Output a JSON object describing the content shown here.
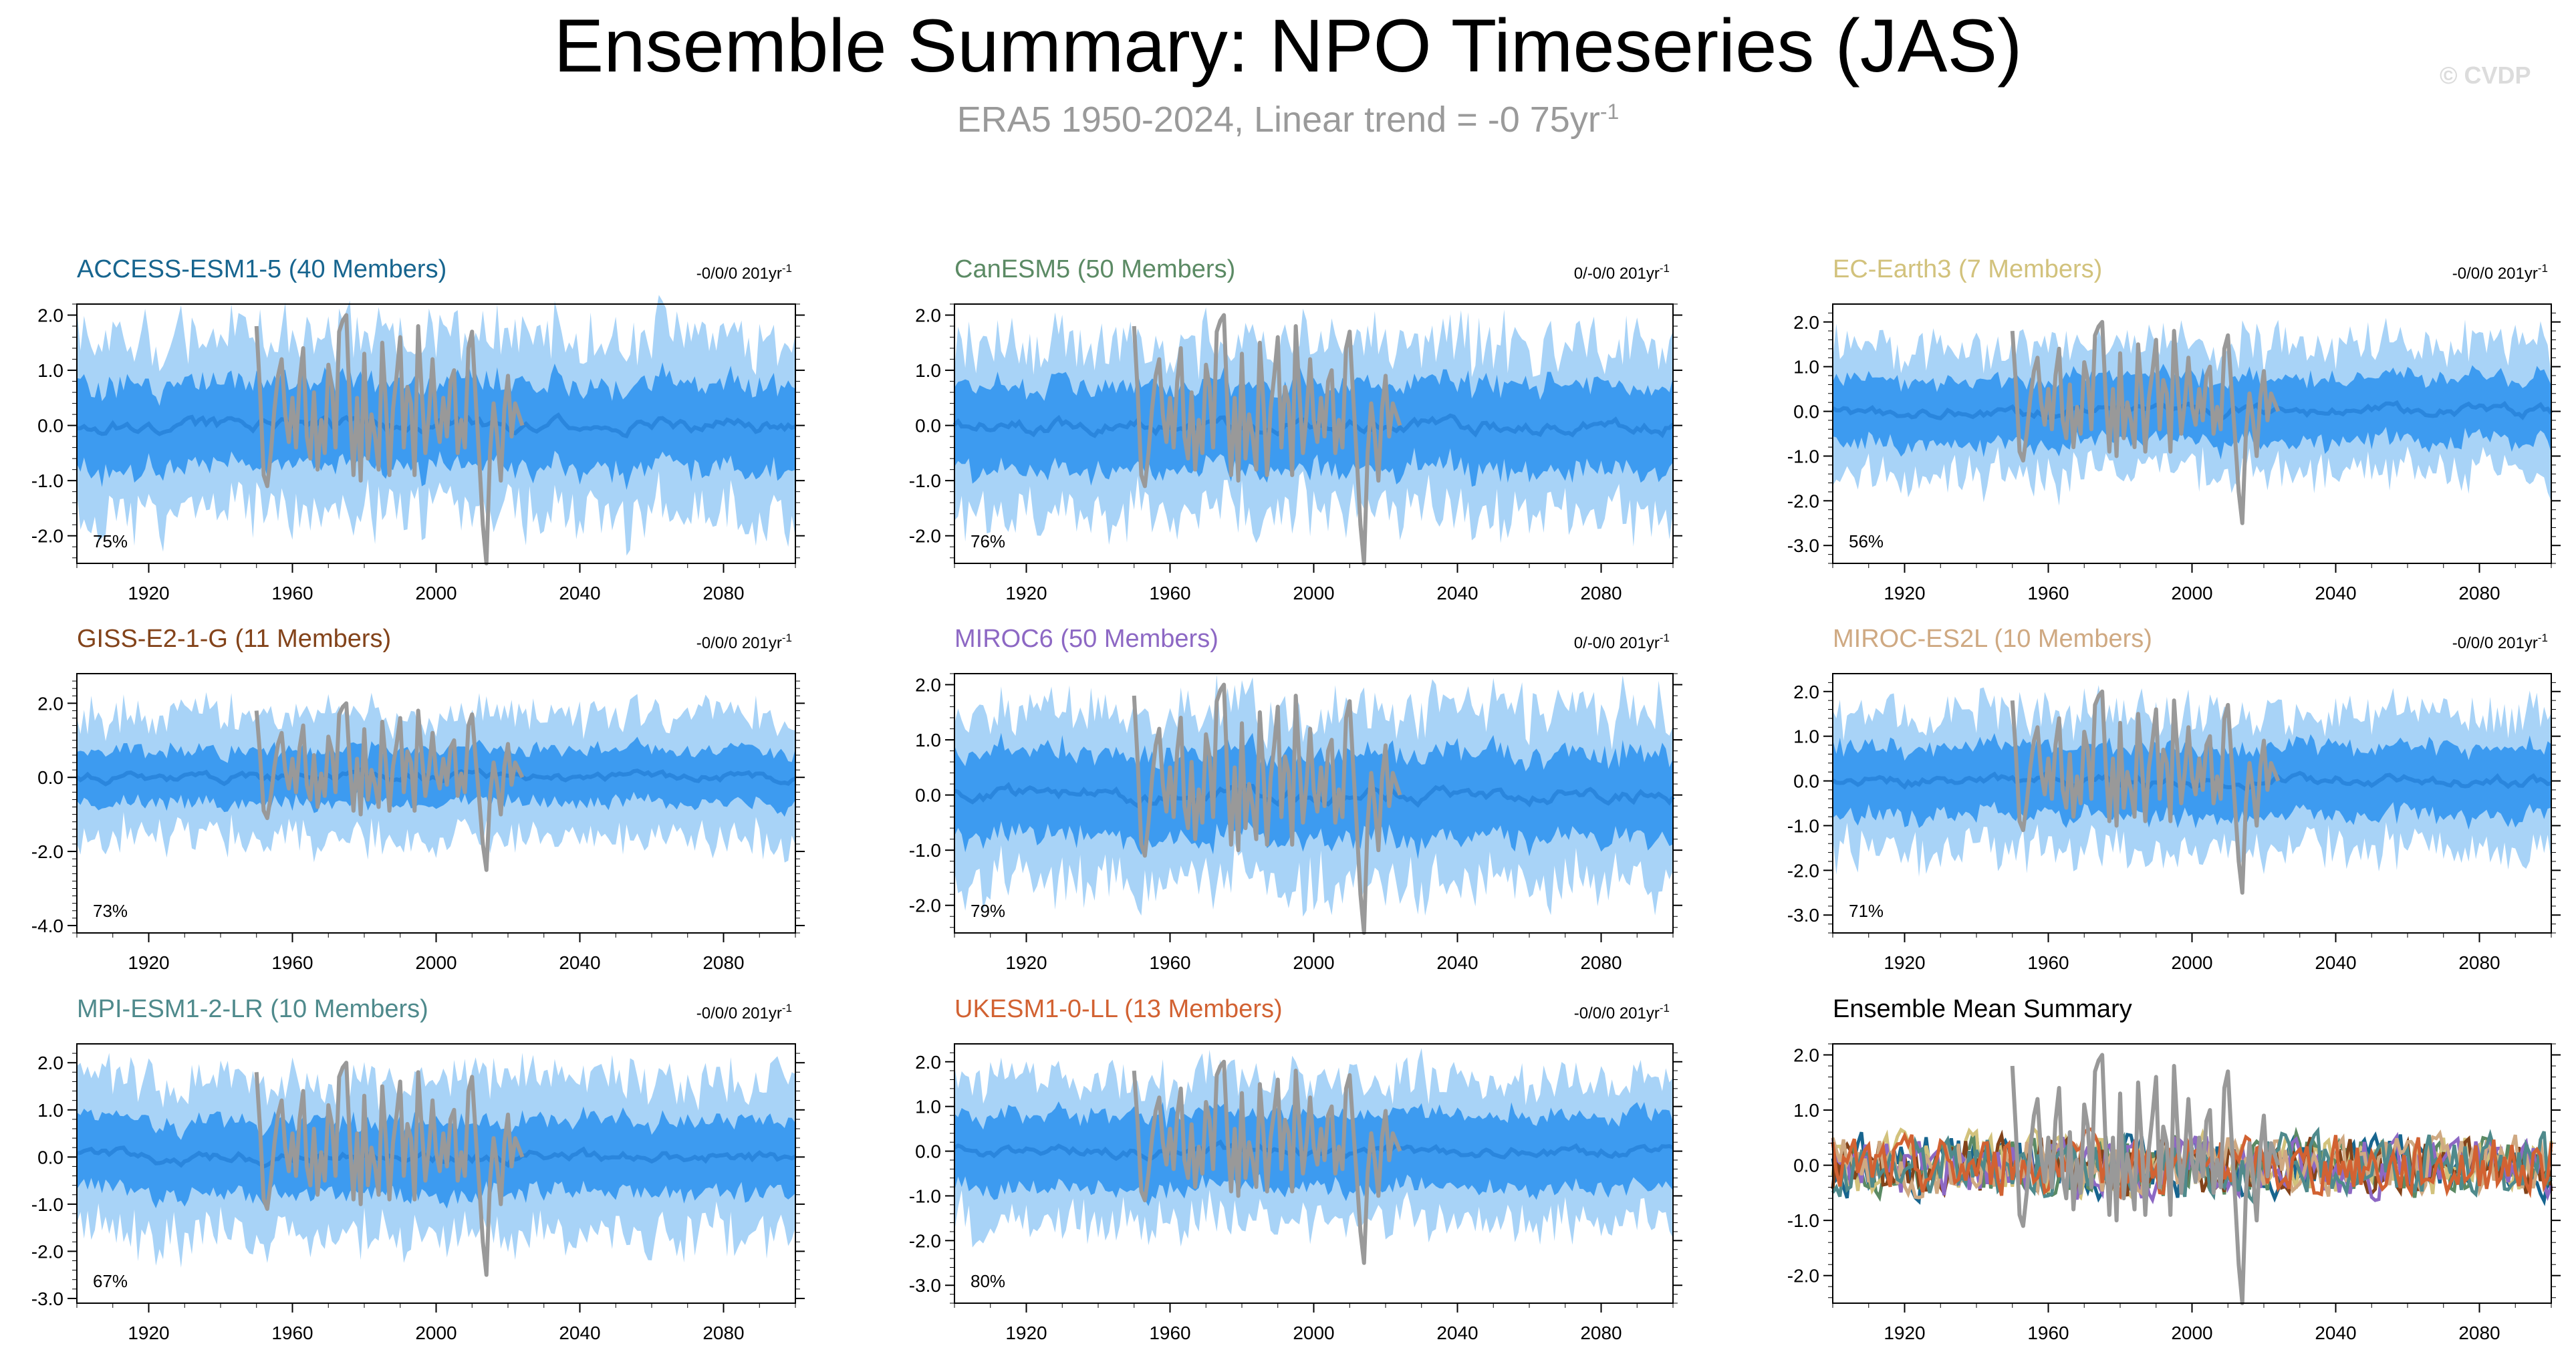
{
  "title": "Ensemble Summary: NPO Timeseries (JAS)",
  "subtitle": {
    "text": "ERA5 1950-2024, Linear trend = -0 75yr",
    "superscript": "-1"
  },
  "watermark": "© CVDP",
  "colors": {
    "band_outer": "#a8d3f7",
    "band_inner": "#3d9bf0",
    "ens_mean": "#2a86dd",
    "obs": "#999999"
  },
  "x_tick_labels": [
    "1920",
    "1960",
    "2000",
    "2040",
    "2080"
  ],
  "chart_data": [
    {
      "type": "area",
      "model": "ACCESS-ESM1-5 (40 Members)",
      "title_color": "#17658f",
      "trend": "-0/0/0 201yr",
      "trend_sup": "-1",
      "percent": "75%",
      "xlim": [
        1900,
        2100
      ],
      "ylim": [
        -2.5,
        2.2
      ],
      "yticks": [
        2,
        1,
        0,
        -1,
        -2
      ],
      "ytick_labels": [
        "2.0",
        "1.0",
        "0.0",
        "-1.0",
        "-2.0"
      ],
      "inner_range": 0.75,
      "outer_range": 1.55,
      "seed": 3
    },
    {
      "type": "area",
      "model": "CanESM5 (50 Members)",
      "title_color": "#5b8a64",
      "trend": "0/-0/0 201yr",
      "trend_sup": "-1",
      "percent": "76%",
      "xlim": [
        1900,
        2100
      ],
      "ylim": [
        -2.5,
        2.2
      ],
      "yticks": [
        2,
        1,
        0,
        -1,
        -2
      ],
      "ytick_labels": [
        "2.0",
        "1.0",
        "0.0",
        "-1.0",
        "-2.0"
      ],
      "inner_range": 0.75,
      "outer_range": 1.5,
      "seed": 7
    },
    {
      "type": "area",
      "model": "EC-Earth3 (7 Members)",
      "title_color": "#d2c27c",
      "trend": "-0/0/0 201yr",
      "trend_sup": "-1",
      "percent": "56%",
      "xlim": [
        1900,
        2100
      ],
      "ylim": [
        -3.4,
        2.4
      ],
      "yticks": [
        2,
        1,
        0,
        -1,
        -2,
        -3
      ],
      "ytick_labels": [
        "2.0",
        "1.0",
        "0.0",
        "-1.0",
        "-2.0",
        "-3.0"
      ],
      "inner_range": 0.7,
      "outer_range": 1.4,
      "seed": 11
    },
    {
      "type": "area",
      "model": "GISS-E2-1-G (11 Members)",
      "title_color": "#83431a",
      "trend": "-0/0/0 201yr",
      "trend_sup": "-1",
      "percent": "73%",
      "xlim": [
        1900,
        2100
      ],
      "ylim": [
        -4.2,
        2.8
      ],
      "yticks": [
        2,
        0,
        -2,
        -4
      ],
      "ytick_labels": [
        "2.0",
        "0.0",
        "-2.0",
        "-4.0"
      ],
      "inner_range": 0.7,
      "outer_range": 1.6,
      "seed": 13
    },
    {
      "type": "area",
      "model": "MIROC6 (50 Members)",
      "title_color": "#8d68c4",
      "trend": "0/-0/0 201yr",
      "trend_sup": "-1",
      "percent": "79%",
      "xlim": [
        1900,
        2100
      ],
      "ylim": [
        -2.5,
        2.2
      ],
      "yticks": [
        2,
        1,
        0,
        -1,
        -2
      ],
      "ytick_labels": [
        "2.0",
        "1.0",
        "0.0",
        "-1.0",
        "-2.0"
      ],
      "inner_range": 0.75,
      "outer_range": 1.5,
      "seed": 17
    },
    {
      "type": "area",
      "model": "MIROC-ES2L (10 Members)",
      "title_color": "#cfa982",
      "trend": "-0/0/0 201yr",
      "trend_sup": "-1",
      "percent": "71%",
      "xlim": [
        1900,
        2100
      ],
      "ylim": [
        -3.4,
        2.4
      ],
      "yticks": [
        2,
        1,
        0,
        -1,
        -2,
        -3
      ],
      "ytick_labels": [
        "2.0",
        "1.0",
        "0.0",
        "-1.0",
        "-2.0",
        "-3.0"
      ],
      "inner_range": 0.75,
      "outer_range": 1.5,
      "seed": 19
    },
    {
      "type": "area",
      "model": "MPI-ESM1-2-LR (10 Members)",
      "title_color": "#4f8a8c",
      "trend": "-0/0/0 201yr",
      "trend_sup": "-1",
      "percent": "67%",
      "xlim": [
        1900,
        2100
      ],
      "ylim": [
        -3.1,
        2.4
      ],
      "yticks": [
        2,
        1,
        0,
        -1,
        -2,
        -3
      ],
      "ytick_labels": [
        "2.0",
        "1.0",
        "0.0",
        "-1.0",
        "-2.0",
        "-3.0"
      ],
      "inner_range": 0.75,
      "outer_range": 1.6,
      "seed": 23
    },
    {
      "type": "area",
      "model": "UKESM1-0-LL (13 Members)",
      "title_color": "#d26232",
      "trend": "-0/0/0 201yr",
      "trend_sup": "-1",
      "percent": "80%",
      "xlim": [
        1900,
        2100
      ],
      "ylim": [
        -3.4,
        2.4
      ],
      "yticks": [
        2,
        1,
        0,
        -1,
        -2,
        -3
      ],
      "ytick_labels": [
        "2.0",
        "1.0",
        "0.0",
        "-1.0",
        "-2.0",
        "-3.0"
      ],
      "inner_range": 0.8,
      "outer_range": 1.55,
      "seed": 29
    },
    {
      "type": "line",
      "model": "Ensemble Mean Summary",
      "title_color": "#000000",
      "trend": "",
      "trend_sup": "",
      "percent": "",
      "xlim": [
        1900,
        2100
      ],
      "ylim": [
        -2.5,
        2.2
      ],
      "yticks": [
        2,
        1,
        0,
        -1,
        -2
      ],
      "ytick_labels": [
        "2.0",
        "1.0",
        "0.0",
        "-1.0",
        "-2.0"
      ],
      "series_colors": [
        "#17658f",
        "#5b8a64",
        "#d2c27c",
        "#83431a",
        "#8d68c4",
        "#cfa982",
        "#4f8a8c",
        "#d26232"
      ],
      "seed": 31
    }
  ],
  "observations": {
    "years": [
      1950,
      1951,
      1952,
      1953,
      1954,
      1955,
      1956,
      1957,
      1958,
      1959,
      1960,
      1961,
      1962,
      1963,
      1964,
      1965,
      1966,
      1967,
      1968,
      1969,
      1970,
      1971,
      1972,
      1973,
      1974,
      1975,
      1976,
      1977,
      1978,
      1979,
      1980,
      1981,
      1982,
      1983,
      1984,
      1985,
      1986,
      1987,
      1988,
      1989,
      1990,
      1991,
      1992,
      1993,
      1994,
      1995,
      1996,
      1997,
      1998,
      1999,
      2000,
      2001,
      2002,
      2003,
      2004,
      2005,
      2006,
      2007,
      2008,
      2009,
      2010,
      2011,
      2012,
      2013,
      2014,
      2015,
      2016,
      2017,
      2018,
      2019,
      2020,
      2021,
      2022,
      2023,
      2024
    ],
    "values": [
      1.8,
      0.6,
      -0.9,
      -1.1,
      -0.5,
      0.3,
      0.9,
      1.2,
      0.2,
      -0.3,
      0.5,
      -0.4,
      0.8,
      1.4,
      -0.2,
      -0.6,
      0.6,
      -0.8,
      0.1,
      -0.5,
      1.1,
      0.7,
      -0.4,
      1.7,
      1.9,
      2.0,
      0.3,
      -0.9,
      0.5,
      -1.0,
      1.3,
      -0.6,
      0.2,
      -0.2,
      -0.8,
      1.5,
      0.4,
      -0.9,
      0.3,
      0.9,
      1.6,
      -0.4,
      0.7,
      0.4,
      -0.9,
      1.8,
      0.6,
      -0.5,
      0.2,
      1.2,
      0.1,
      -0.3,
      0.5,
      -0.2,
      0.8,
      1.0,
      -0.5,
      0.1,
      -0.4,
      1.4,
      1.7,
      0.5,
      -0.6,
      -1.8,
      -2.5,
      -0.5,
      0.4,
      -0.2,
      -1.0,
      0.3,
      0.9,
      -0.2,
      0.4,
      0.2,
      0.0
    ]
  }
}
